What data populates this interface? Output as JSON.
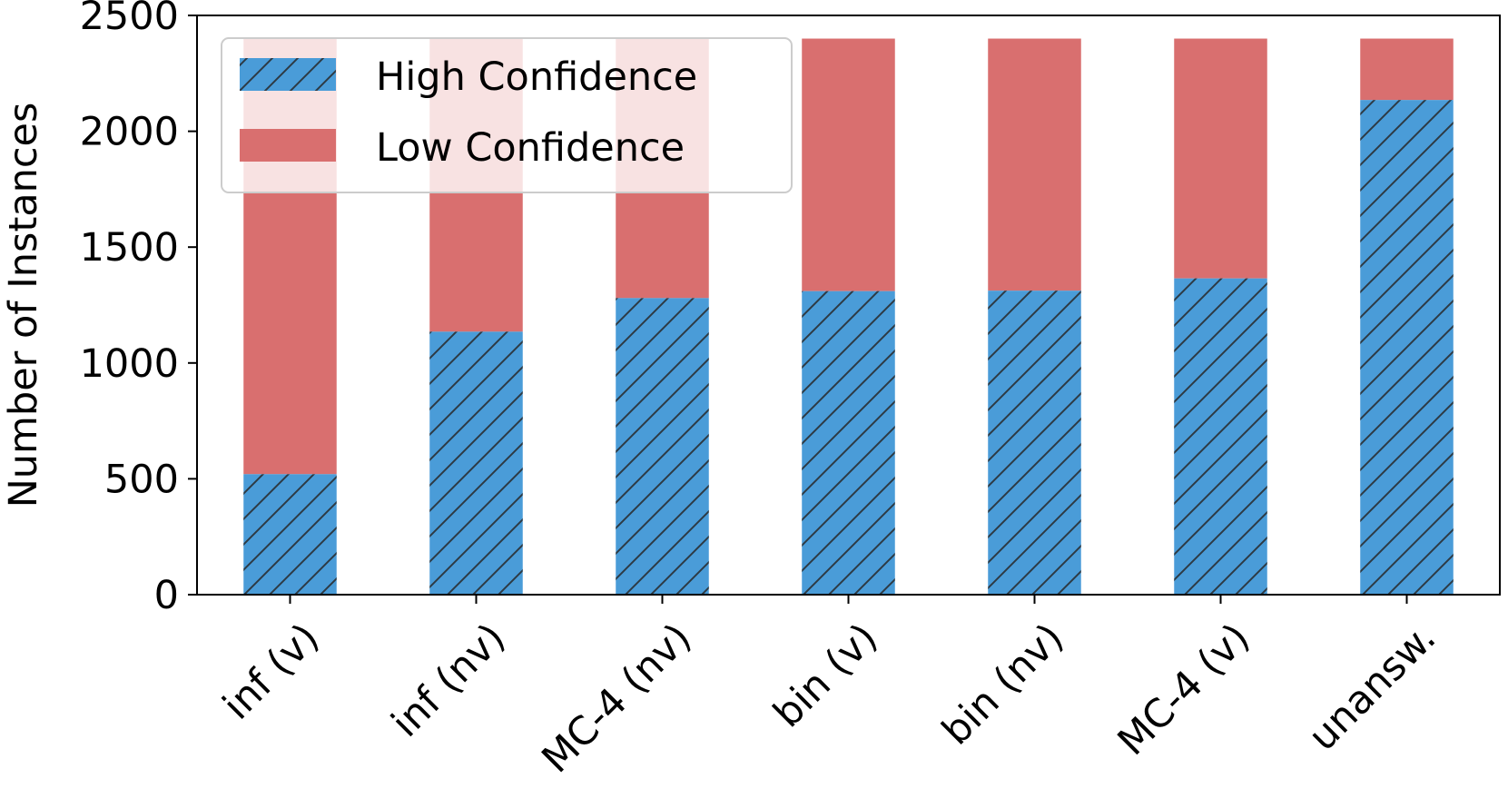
{
  "chart_data": {
    "type": "bar",
    "stacked": true,
    "title": "",
    "xlabel": "",
    "ylabel": "Number of Instances",
    "ylim": [
      0,
      2500
    ],
    "yticks": [
      0,
      500,
      1000,
      1500,
      2000,
      2500
    ],
    "grid": false,
    "legend": "top-left",
    "categories": [
      "inf (v)",
      "inf (nv)",
      "MC-4 (nv)",
      "bin (v)",
      "bin (nv)",
      "MC-4 (v)",
      "unansw."
    ],
    "series": [
      {
        "name": "High Confidence",
        "color": "#4a9cd8",
        "hatch": "diagonal",
        "values": [
          520,
          1135,
          1280,
          1310,
          1312,
          1365,
          2135
        ]
      },
      {
        "name": "Low Confidence",
        "color": "#d96f6f",
        "values": [
          1880,
          1265,
          1120,
          1090,
          1088,
          1035,
          265
        ]
      }
    ]
  }
}
